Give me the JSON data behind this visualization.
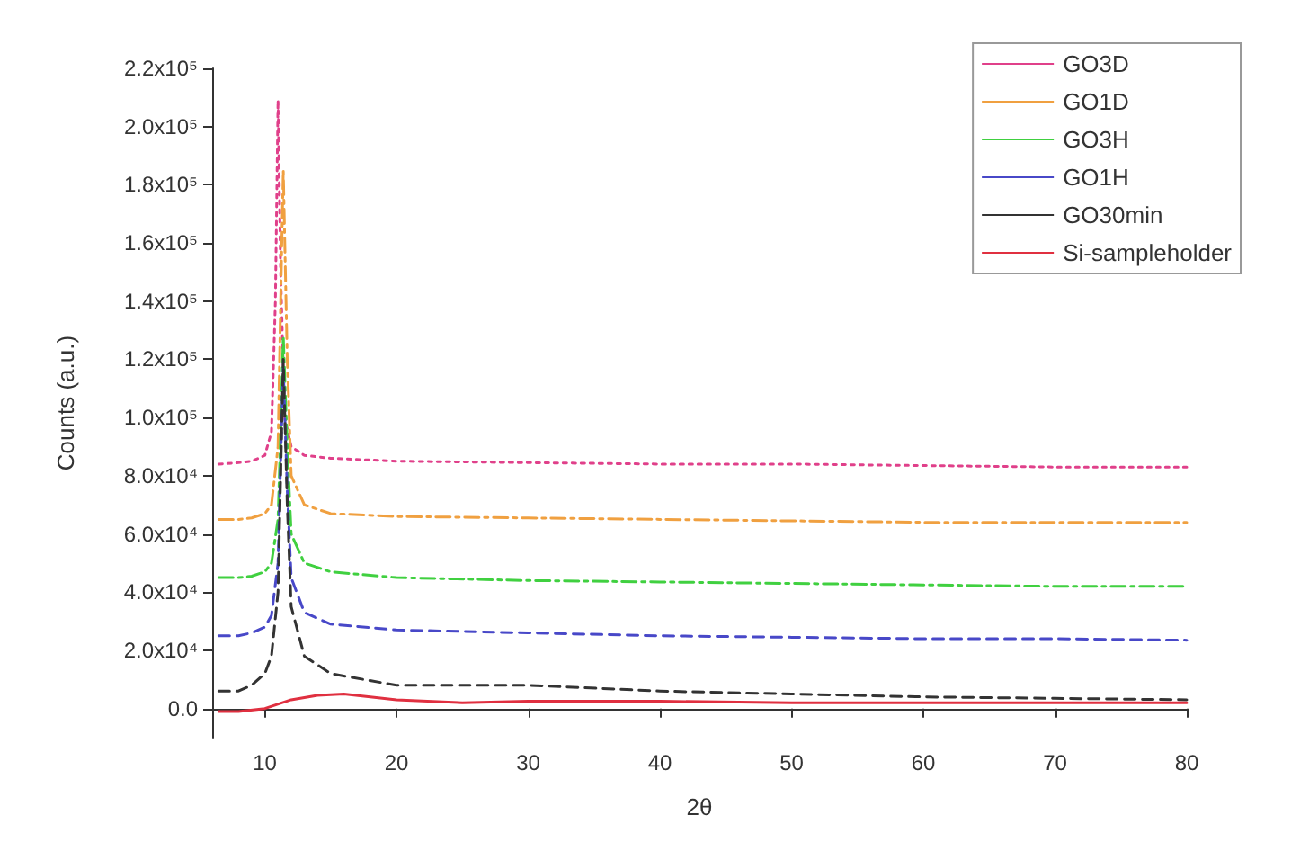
{
  "chart_data": {
    "type": "line",
    "xlabel": "2θ",
    "ylabel": "Counts (a.u.)",
    "xlim": [
      6,
      80
    ],
    "xticks": [
      10,
      20,
      30,
      40,
      50,
      60,
      70,
      80
    ],
    "ylim": [
      -10000,
      220000
    ],
    "yticks": [
      {
        "value": 0,
        "label": "0.0"
      },
      {
        "value": 20000,
        "label": "2.0x10⁴"
      },
      {
        "value": 40000,
        "label": "4.0x10⁴"
      },
      {
        "value": 60000,
        "label": "6.0x10⁴"
      },
      {
        "value": 80000,
        "label": "8.0x10⁴"
      },
      {
        "value": 100000,
        "label": "1.0x10⁵"
      },
      {
        "value": 120000,
        "label": "1.2x10⁵"
      },
      {
        "value": 140000,
        "label": "1.4x10⁵"
      },
      {
        "value": 160000,
        "label": "1.6x10⁵"
      },
      {
        "value": 180000,
        "label": "1.8x10⁵"
      },
      {
        "value": 200000,
        "label": "2.0x10⁵"
      },
      {
        "value": 220000,
        "label": "2.2x10⁵"
      }
    ],
    "grid": false,
    "legend": "top right",
    "marker": "none",
    "series": [
      {
        "name": "GO3D",
        "color": "#e0408a",
        "line_style": "dotted",
        "x": [
          6.5,
          8,
          9,
          10,
          10.5,
          10.8,
          11,
          11.2,
          11.5,
          12,
          13,
          15,
          20,
          30,
          40,
          50,
          60,
          70,
          80
        ],
        "values": [
          84000,
          84500,
          85000,
          87000,
          95000,
          140000,
          209000,
          150000,
          100000,
          90000,
          87000,
          86000,
          85000,
          84500,
          84000,
          84000,
          83500,
          83000,
          83000
        ]
      },
      {
        "name": "GO1D",
        "color": "#f0a040",
        "line_style": "dashdot",
        "x": [
          6.5,
          8,
          9,
          10,
          10.5,
          11,
          11.2,
          11.4,
          11.7,
          12,
          13,
          15,
          20,
          30,
          40,
          50,
          60,
          70,
          80
        ],
        "values": [
          65000,
          65000,
          65500,
          67000,
          70000,
          90000,
          140000,
          185000,
          120000,
          80000,
          70000,
          67000,
          66000,
          65500,
          65000,
          64500,
          64000,
          64000,
          64000
        ]
      },
      {
        "name": "GO3H",
        "color": "#40d040",
        "line_style": "dashdot",
        "x": [
          6.5,
          8,
          9,
          10,
          10.5,
          11,
          11.2,
          11.4,
          11.7,
          12,
          13,
          15,
          20,
          30,
          40,
          50,
          60,
          70,
          80
        ],
        "values": [
          45000,
          45000,
          45500,
          47000,
          50000,
          65000,
          95000,
          128000,
          90000,
          60000,
          50000,
          47000,
          45000,
          44000,
          43500,
          43000,
          42500,
          42000,
          42000
        ]
      },
      {
        "name": "GO1H",
        "color": "#4848c8",
        "line_style": "dashed",
        "x": [
          6.5,
          8,
          9,
          10,
          10.5,
          11,
          11.2,
          11.4,
          11.7,
          12,
          13,
          15,
          20,
          30,
          40,
          50,
          60,
          70,
          80
        ],
        "values": [
          25000,
          25000,
          26000,
          28000,
          32000,
          50000,
          85000,
          117000,
          75000,
          45000,
          33000,
          29000,
          27000,
          26000,
          25000,
          24500,
          24000,
          24000,
          23500
        ]
      },
      {
        "name": "GO30min",
        "color": "#333333",
        "line_style": "dashed",
        "x": [
          6.5,
          8,
          9,
          10,
          10.5,
          11,
          11.2,
          11.4,
          11.7,
          12,
          13,
          15,
          20,
          30,
          40,
          50,
          60,
          70,
          80
        ],
        "values": [
          6000,
          6000,
          8000,
          12000,
          18000,
          40000,
          80000,
          120000,
          70000,
          35000,
          18000,
          12000,
          8000,
          8000,
          6000,
          5000,
          4000,
          3500,
          3000
        ]
      },
      {
        "name": "Si-sampleholder",
        "color": "#e03040",
        "line_style": "solid",
        "x": [
          6.5,
          8,
          10,
          12,
          14,
          16,
          20,
          25,
          30,
          40,
          50,
          60,
          70,
          80
        ],
        "values": [
          -1000,
          -1000,
          0,
          3000,
          4500,
          5000,
          3000,
          2000,
          2500,
          2500,
          2000,
          2000,
          2000,
          2000
        ]
      }
    ]
  }
}
